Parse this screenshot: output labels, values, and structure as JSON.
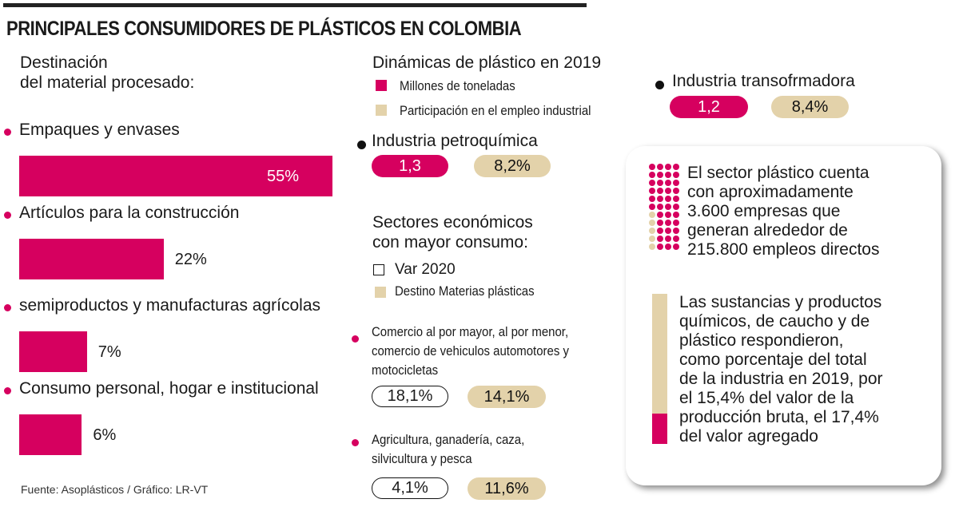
{
  "title": "PRINCIPALES CONSUMIDORES DE PLÁSTICOS EN COLOMBIA",
  "colors": {
    "magenta": "#d6005f",
    "beige": "#e3d2aa"
  },
  "chart_data": {
    "type": "bar",
    "title": "Destinación del material procesado:",
    "title_lines": [
      "Destinación",
      "del material procesado:"
    ],
    "categories": [
      "Empaques y envases",
      "Artículos para la construcción",
      "semiproductos y manufacturas agrícolas",
      "Consumo personal, hogar e institucional"
    ],
    "values": [
      55,
      22,
      7,
      6
    ],
    "labels": [
      "55%",
      "22%",
      "7%",
      "6%"
    ],
    "xlabel": "",
    "ylabel": "",
    "unit": "%"
  },
  "source": "Fuente: Asoplásticos / Gráfico: LR-VT",
  "dynamics": {
    "title": "Dinámicas de plástico en 2019",
    "legend": [
      "Millones de toneladas",
      "Participación en el empleo industrial"
    ],
    "petro": {
      "label": "Industria petroquímica",
      "tons": "1,3",
      "share": "8,2%"
    },
    "trans": {
      "label": "Industria transofrmadora",
      "tons": "1,2",
      "share": "8,4%"
    }
  },
  "sectors": {
    "title_lines": [
      "Sectores económicos",
      "con mayor consumo:"
    ],
    "legend": [
      "Var  2020",
      "Destino Materias plásticas"
    ],
    "items": [
      {
        "lines": [
          "Comercio al por mayor, al por menor,",
          "comercio de vehiculos automotores y",
          "motocicletas"
        ],
        "var": "18,1%",
        "dest": "14,1%"
      },
      {
        "lines": [
          "Agricultura, ganadería, caza,",
          "silvicultura y pesca"
        ],
        "var": "4,1%",
        "dest": "11,6%"
      }
    ]
  },
  "box": {
    "text1": [
      "El sector plástico cuenta",
      "con aproximadamente",
      "3.600 empresas que",
      "generan alrededor de",
      "215.800 empleos directos"
    ],
    "text2": [
      "Las sustancias y productos",
      "químicos, de caucho y de",
      "plástico respondieron,",
      "como porcentaje del total",
      "de la industria en 2019, por",
      "el 15,4% del valor de la",
      "producción bruta, el 17,4%",
      "del valor agregado"
    ]
  }
}
